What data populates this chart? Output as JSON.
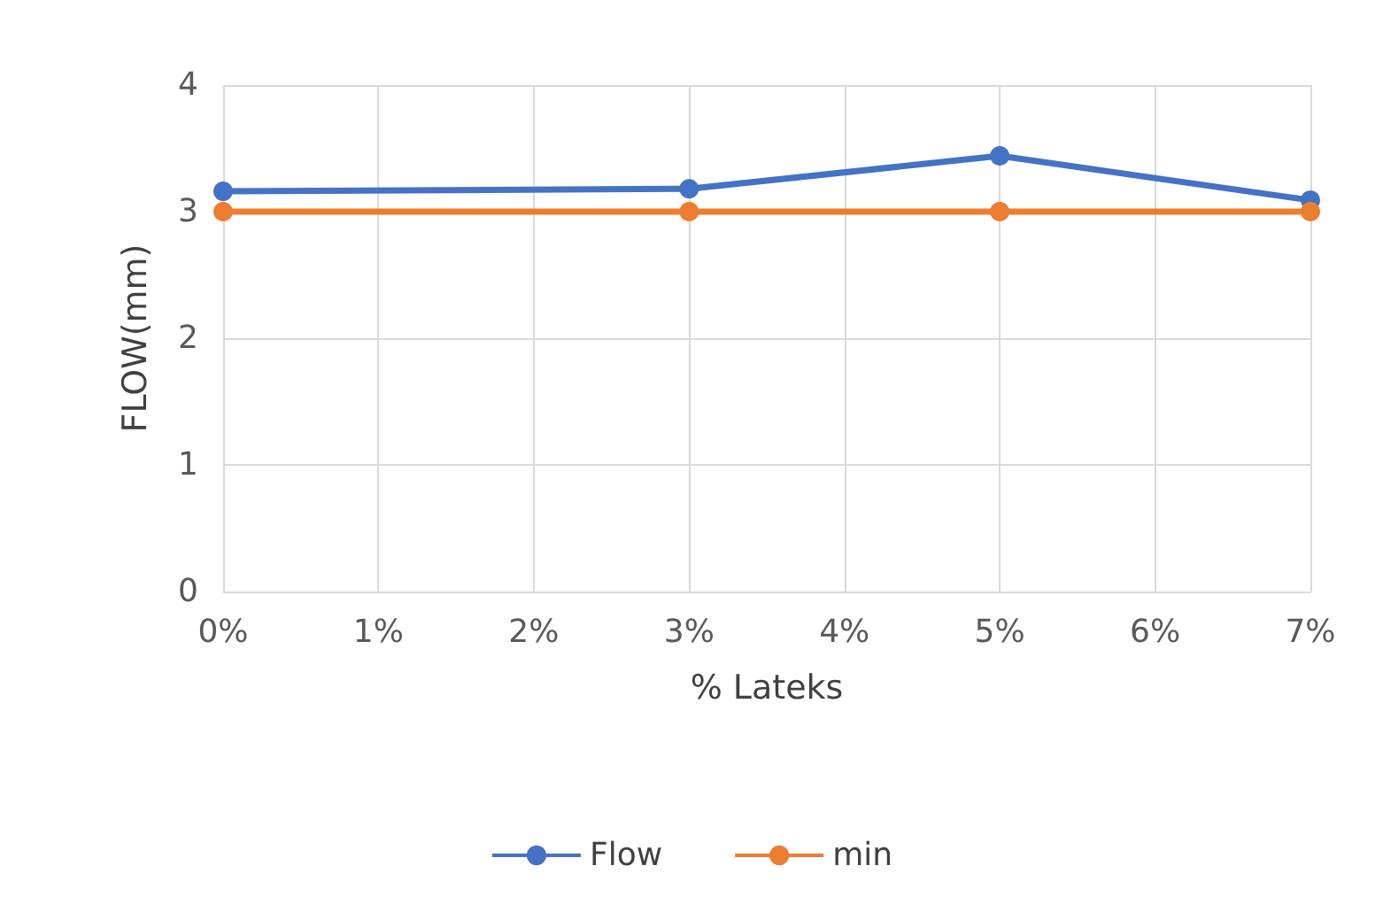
{
  "chart_data": {
    "type": "line",
    "xlabel": "% Lateks",
    "ylabel": "FLOW(mm)",
    "x": [
      0,
      3,
      5,
      7
    ],
    "series": [
      {
        "name": "Flow",
        "color": "#4472c4",
        "values": [
          3.16,
          3.18,
          3.44,
          3.09
        ]
      },
      {
        "name": "min",
        "color": "#ed7d31",
        "values": [
          3,
          3,
          3,
          3
        ]
      }
    ],
    "xlim": [
      0,
      7
    ],
    "xticks": [
      {
        "value": 0,
        "label": "0%"
      },
      {
        "value": 1,
        "label": "1%"
      },
      {
        "value": 2,
        "label": "2%"
      },
      {
        "value": 3,
        "label": "3%"
      },
      {
        "value": 4,
        "label": "4%"
      },
      {
        "value": 5,
        "label": "5%"
      },
      {
        "value": 6,
        "label": "6%"
      },
      {
        "value": 7,
        "label": "7%"
      }
    ],
    "ylim": [
      0,
      4
    ],
    "yticks": [
      0,
      1,
      2,
      3,
      4
    ],
    "grid": true,
    "legend": "bottom",
    "marker": "circle",
    "line_style": "solid"
  }
}
